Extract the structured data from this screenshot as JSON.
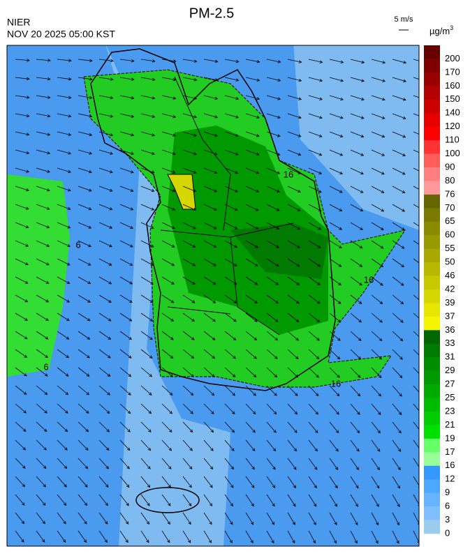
{
  "header": {
    "title": "PM-2.5",
    "agency": "NIER",
    "time": "NOV 20 2025 05:00 KST",
    "wind_scale": "5 m/s",
    "unit": "µg/m",
    "unit_power": "3"
  },
  "colorbar": {
    "labels": [
      200,
      170,
      160,
      150,
      140,
      120,
      110,
      100,
      90,
      80,
      76,
      70,
      65,
      60,
      55,
      50,
      46,
      42,
      39,
      37,
      36,
      33,
      31,
      29,
      27,
      25,
      23,
      21,
      19,
      17,
      16,
      12,
      9,
      6,
      3,
      0
    ],
    "colors": [
      "#660000",
      "#800000",
      "#990000",
      "#b30000",
      "#cc0000",
      "#e60000",
      "#ff0000",
      "#ff3333",
      "#ff5c5c",
      "#ff7f7f",
      "#ff9999",
      "#666600",
      "#7a7a00",
      "#8a8a00",
      "#999900",
      "#a8a800",
      "#b8b800",
      "#c8c800",
      "#d6d600",
      "#e6e600",
      "#f5f500",
      "#006600",
      "#007a00",
      "#008c00",
      "#009900",
      "#00aa00",
      "#00bb00",
      "#00cc00",
      "#00e000",
      "#66ff66",
      "#99ff99",
      "#3399ff",
      "#4da6ff",
      "#66b3ff",
      "#80bfff",
      "#99ccee"
    ]
  },
  "map": {
    "contour_labels": [
      "16",
      "16",
      "16",
      "6",
      "6"
    ]
  }
}
